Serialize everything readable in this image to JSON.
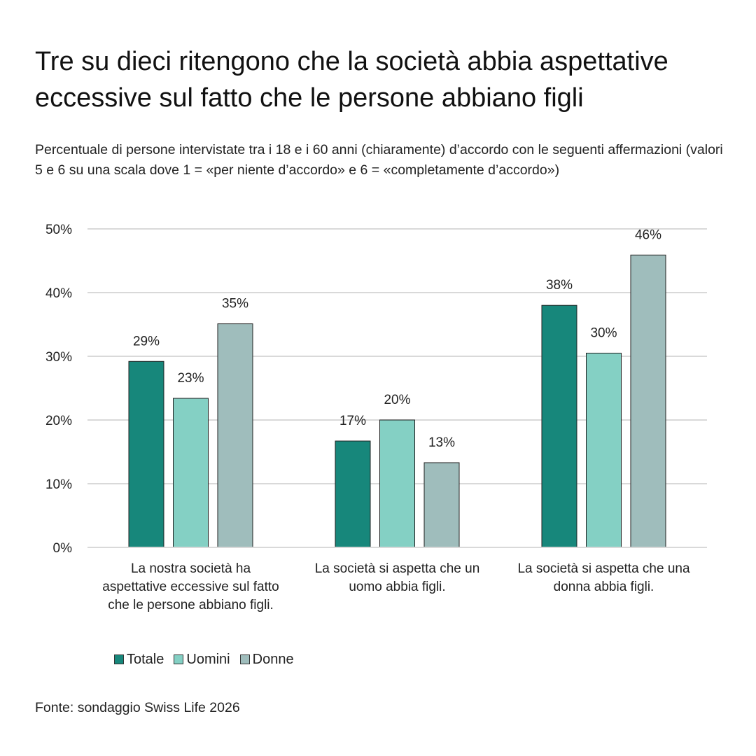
{
  "title": "Tre su dieci ritengono che la società abbia aspettative eccessive sul fatto che le persone abbiano figli",
  "subtitle": "Percentuale di persone intervistate tra i 18 e i 60 anni (chiaramente) d’accordo con le seguenti affermazioni (valori 5 e 6 su una scala dove 1 = «per niente d’accordo» e 6 = «completamente d’accordo»)",
  "source": "Fonte: sondaggio Swiss Life 2026",
  "chart_data": {
    "type": "bar",
    "categories": [
      "La nostra società ha aspettative eccessive sul fatto che le persone abbiano figli.",
      "La società si aspetta che un uomo abbia figli.",
      "La società si aspetta che una donna abbia figli."
    ],
    "series": [
      {
        "name": "Totale",
        "values": [
          29.2,
          16.7,
          38.0
        ],
        "labels": [
          "29%",
          "17%",
          "38%"
        ],
        "color": "#17877b"
      },
      {
        "name": "Uomini",
        "values": [
          23.4,
          20.0,
          30.5
        ],
        "labels": [
          "23%",
          "20%",
          "30%"
        ],
        "color": "#84d0c4"
      },
      {
        "name": "Donne",
        "values": [
          35.1,
          13.3,
          45.9
        ],
        "labels": [
          "35%",
          "13%",
          "46%"
        ],
        "color": "#9fbdbc"
      }
    ],
    "yticks": [
      "0%",
      "10%",
      "20%",
      "30%",
      "40%",
      "50%"
    ],
    "ylim": [
      0,
      50
    ],
    "grid": true,
    "legend": "bottom-left"
  }
}
